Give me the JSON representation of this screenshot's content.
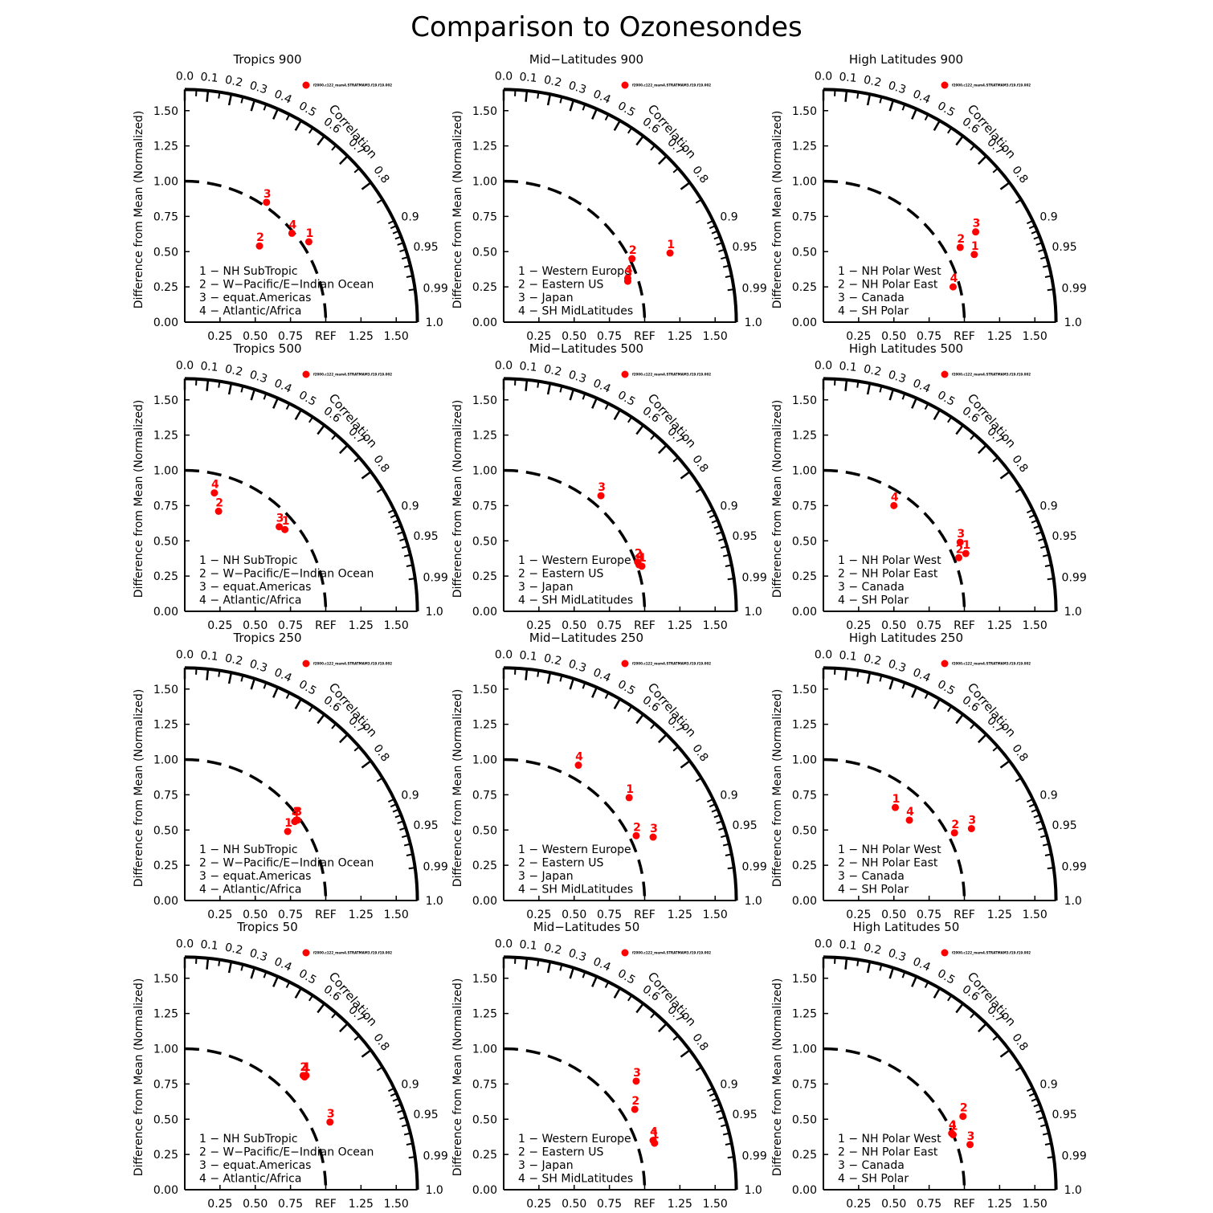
{
  "title": "Comparison to Ozonesondes",
  "axis": {
    "ylabel": "Difference from Mean (Normalized)",
    "ref_label": "REF",
    "correlation_label": "Correlation",
    "x_ticks": [
      "0.25",
      "0.50",
      "0.75",
      "REF",
      "1.25",
      "1.50"
    ],
    "y_ticks": [
      "0.00",
      "0.25",
      "0.50",
      "0.75",
      "1.00",
      "1.25",
      "1.50"
    ],
    "correlation_ticks": [
      "0.0",
      "0.1",
      "0.2",
      "0.3",
      "0.4",
      "0.5",
      "0.6",
      "0.7",
      "0.8",
      "0.9",
      "0.95",
      "0.99",
      "1.0"
    ],
    "ratio_max": 1.65
  },
  "model_label": "f2000.c122_mam4.STRATMAM3.f19.f19.002",
  "legends": {
    "tropics": [
      "1 − NH SubTropic",
      "2 − W−Pacific/E−Indian Ocean",
      "3 − equat.Americas",
      "4 − Atlantic/Africa"
    ],
    "midlat": [
      "1 − Western Europe",
      "2 − Eastern US",
      "3 − Japan",
      "4 − SH MidLatitudes"
    ],
    "highlat": [
      "1 − NH Polar West",
      "2 − NH Polar East",
      "3 − Canada",
      "4 − SH Polar"
    ]
  },
  "colors": {
    "points": "#ff0000",
    "axes": "#000000"
  },
  "chart_data": [
    {
      "type": "scatter",
      "title": "Tropics 900",
      "legend": "tropics",
      "points": [
        {
          "id": "1",
          "x": 0.88,
          "y": 0.57
        },
        {
          "id": "2",
          "x": 0.53,
          "y": 0.54
        },
        {
          "id": "3",
          "x": 0.58,
          "y": 0.85
        },
        {
          "id": "4",
          "x": 0.76,
          "y": 0.63
        }
      ]
    },
    {
      "type": "scatter",
      "title": "Mid−Latitudes 900",
      "legend": "midlat",
      "points": [
        {
          "id": "1",
          "x": 1.18,
          "y": 0.49
        },
        {
          "id": "2",
          "x": 0.91,
          "y": 0.45
        },
        {
          "id": "3",
          "x": 0.88,
          "y": 0.29
        },
        {
          "id": "4",
          "x": 0.88,
          "y": 0.31
        }
      ]
    },
    {
      "type": "scatter",
      "title": "High Latitudes 900",
      "legend": "highlat",
      "points": [
        {
          "id": "1",
          "x": 1.07,
          "y": 0.48
        },
        {
          "id": "2",
          "x": 0.97,
          "y": 0.53
        },
        {
          "id": "3",
          "x": 1.08,
          "y": 0.64
        },
        {
          "id": "4",
          "x": 0.92,
          "y": 0.25
        }
      ]
    },
    {
      "type": "scatter",
      "title": "Tropics 500",
      "legend": "tropics",
      "points": [
        {
          "id": "1",
          "x": 0.71,
          "y": 0.58
        },
        {
          "id": "2",
          "x": 0.24,
          "y": 0.71
        },
        {
          "id": "3",
          "x": 0.67,
          "y": 0.6
        },
        {
          "id": "4",
          "x": 0.21,
          "y": 0.84
        }
      ]
    },
    {
      "type": "scatter",
      "title": "Mid−Latitudes 500",
      "legend": "midlat",
      "points": [
        {
          "id": "1",
          "x": 0.98,
          "y": 0.32
        },
        {
          "id": "2",
          "x": 0.95,
          "y": 0.35
        },
        {
          "id": "3",
          "x": 0.69,
          "y": 0.82
        },
        {
          "id": "4",
          "x": 0.96,
          "y": 0.33
        }
      ]
    },
    {
      "type": "scatter",
      "title": "High Latitudes 500",
      "legend": "highlat",
      "points": [
        {
          "id": "1",
          "x": 1.01,
          "y": 0.41
        },
        {
          "id": "2",
          "x": 0.96,
          "y": 0.38
        },
        {
          "id": "3",
          "x": 0.97,
          "y": 0.49
        },
        {
          "id": "4",
          "x": 0.5,
          "y": 0.75
        }
      ]
    },
    {
      "type": "scatter",
      "title": "Tropics 250",
      "legend": "tropics",
      "points": [
        {
          "id": "1",
          "x": 0.73,
          "y": 0.49
        },
        {
          "id": "2",
          "x": 0.79,
          "y": 0.57
        },
        {
          "id": "3",
          "x": 0.8,
          "y": 0.57
        },
        {
          "id": "4",
          "x": 0.78,
          "y": 0.56
        }
      ]
    },
    {
      "type": "scatter",
      "title": "Mid−Latitudes 250",
      "legend": "midlat",
      "points": [
        {
          "id": "1",
          "x": 0.89,
          "y": 0.73
        },
        {
          "id": "2",
          "x": 0.94,
          "y": 0.46
        },
        {
          "id": "3",
          "x": 1.06,
          "y": 0.45
        },
        {
          "id": "4",
          "x": 0.53,
          "y": 0.96
        }
      ]
    },
    {
      "type": "scatter",
      "title": "High Latitudes 250",
      "legend": "highlat",
      "points": [
        {
          "id": "1",
          "x": 0.51,
          "y": 0.66
        },
        {
          "id": "2",
          "x": 0.93,
          "y": 0.48
        },
        {
          "id": "3",
          "x": 1.05,
          "y": 0.51
        },
        {
          "id": "4",
          "x": 0.61,
          "y": 0.57
        }
      ]
    },
    {
      "type": "scatter",
      "title": "Tropics 50",
      "legend": "tropics",
      "points": [
        {
          "id": "1",
          "x": 0.86,
          "y": 0.81
        },
        {
          "id": "2",
          "x": 0.84,
          "y": 0.81
        },
        {
          "id": "3",
          "x": 1.03,
          "y": 0.48
        },
        {
          "id": "4",
          "x": 0.85,
          "y": 0.8
        }
      ]
    },
    {
      "type": "scatter",
      "title": "Mid−Latitudes 50",
      "legend": "midlat",
      "points": [
        {
          "id": "1",
          "x": 1.07,
          "y": 0.33
        },
        {
          "id": "2",
          "x": 0.93,
          "y": 0.57
        },
        {
          "id": "3",
          "x": 0.94,
          "y": 0.77
        },
        {
          "id": "4",
          "x": 1.06,
          "y": 0.35
        }
      ]
    },
    {
      "type": "scatter",
      "title": "High Latitudes 50",
      "legend": "highlat",
      "points": [
        {
          "id": "1",
          "x": 0.92,
          "y": 0.39
        },
        {
          "id": "2",
          "x": 0.99,
          "y": 0.52
        },
        {
          "id": "3",
          "x": 1.04,
          "y": 0.32
        },
        {
          "id": "4",
          "x": 0.91,
          "y": 0.4
        }
      ]
    }
  ]
}
